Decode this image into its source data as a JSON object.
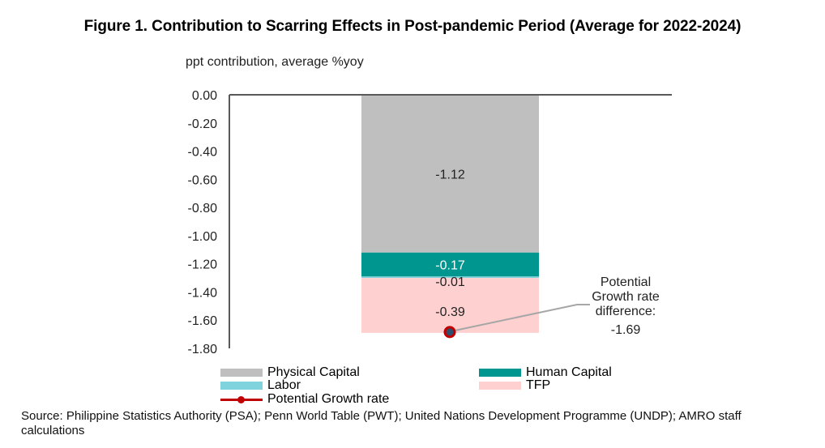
{
  "title": "Figure 1. Contribution to Scarring Effects in Post-pandemic Period (Average for 2022-2024)",
  "source": "Source: Philippine Statistics Authority (PSA); Penn World Table (PWT); United Nations Development Programme (UNDP); AMRO staff calculations",
  "chart_data": {
    "type": "bar",
    "subtype": "stacked",
    "title": "Figure 1. Contribution to Scarring Effects in Post-pandemic Period (Average for 2022-2024)",
    "xlabel": "",
    "ylabel": "ppt contribution, average %yoy",
    "ylim": [
      -1.8,
      0.0
    ],
    "yticks": [
      0.0,
      -0.2,
      -0.4,
      -0.6,
      -0.8,
      -1.0,
      -1.2,
      -1.4,
      -1.6,
      -1.8
    ],
    "ytick_labels": [
      "0.00",
      "-0.20",
      "-0.40",
      "-0.60",
      "-0.80",
      "-1.00",
      "-1.20",
      "-1.40",
      "-1.60",
      "-1.80"
    ],
    "grid": false,
    "categories": [
      ""
    ],
    "series": [
      {
        "name": "Physical Capital",
        "values": [
          -1.12
        ],
        "color": "#bfbfbf",
        "label": "-1.12",
        "label_color": "#222222"
      },
      {
        "name": "Human Capital",
        "values": [
          -0.17
        ],
        "color": "#009690",
        "label": "-0.17",
        "label_color": "#ffffff"
      },
      {
        "name": "Labor",
        "values": [
          -0.01
        ],
        "color": "#7fd3dc",
        "label": "-0.01",
        "label_color": "#222222"
      },
      {
        "name": "TFP",
        "values": [
          -0.39
        ],
        "color": "#ffd0d0",
        "label": "-0.39",
        "label_color": "#222222"
      }
    ],
    "line_series": {
      "name": "Potential Growth rate",
      "values": [
        -1.69
      ],
      "color": "#c00000",
      "marker_fill": "#2f4f6f"
    },
    "annotation": {
      "lines": [
        "Potential",
        "Growth rate",
        "difference:",
        "-1.69"
      ],
      "value": -1.69
    },
    "legend": {
      "position": "bottom",
      "items": [
        "Physical Capital",
        "Human Capital",
        "Labor",
        "TFP",
        "Potential Growth rate"
      ]
    }
  }
}
